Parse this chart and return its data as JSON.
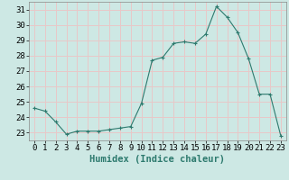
{
  "x": [
    0,
    1,
    2,
    3,
    4,
    5,
    6,
    7,
    8,
    9,
    10,
    11,
    12,
    13,
    14,
    15,
    16,
    17,
    18,
    19,
    20,
    21,
    22,
    23
  ],
  "y": [
    24.6,
    24.4,
    23.7,
    22.9,
    23.1,
    23.1,
    23.1,
    23.2,
    23.3,
    23.4,
    24.9,
    27.7,
    27.9,
    28.8,
    28.9,
    28.8,
    29.4,
    31.2,
    30.5,
    29.5,
    27.8,
    25.5,
    25.5,
    22.8
  ],
  "line_color": "#2d7a6e",
  "marker": "+",
  "marker_size": 3,
  "bg_color": "#cde8e4",
  "grid_color": "#e8c8c8",
  "xlabel": "Humidex (Indice chaleur)",
  "ylabel_ticks": [
    23,
    24,
    25,
    26,
    27,
    28,
    29,
    30,
    31
  ],
  "xlim": [
    -0.5,
    23.5
  ],
  "ylim": [
    22.5,
    31.5
  ],
  "xtick_labels": [
    "0",
    "1",
    "2",
    "3",
    "4",
    "5",
    "6",
    "7",
    "8",
    "9",
    "10",
    "11",
    "12",
    "13",
    "14",
    "15",
    "16",
    "17",
    "18",
    "19",
    "20",
    "21",
    "22",
    "23"
  ],
  "title_color": "#2d7a6e",
  "label_fontsize": 7.5,
  "tick_fontsize": 6.5
}
